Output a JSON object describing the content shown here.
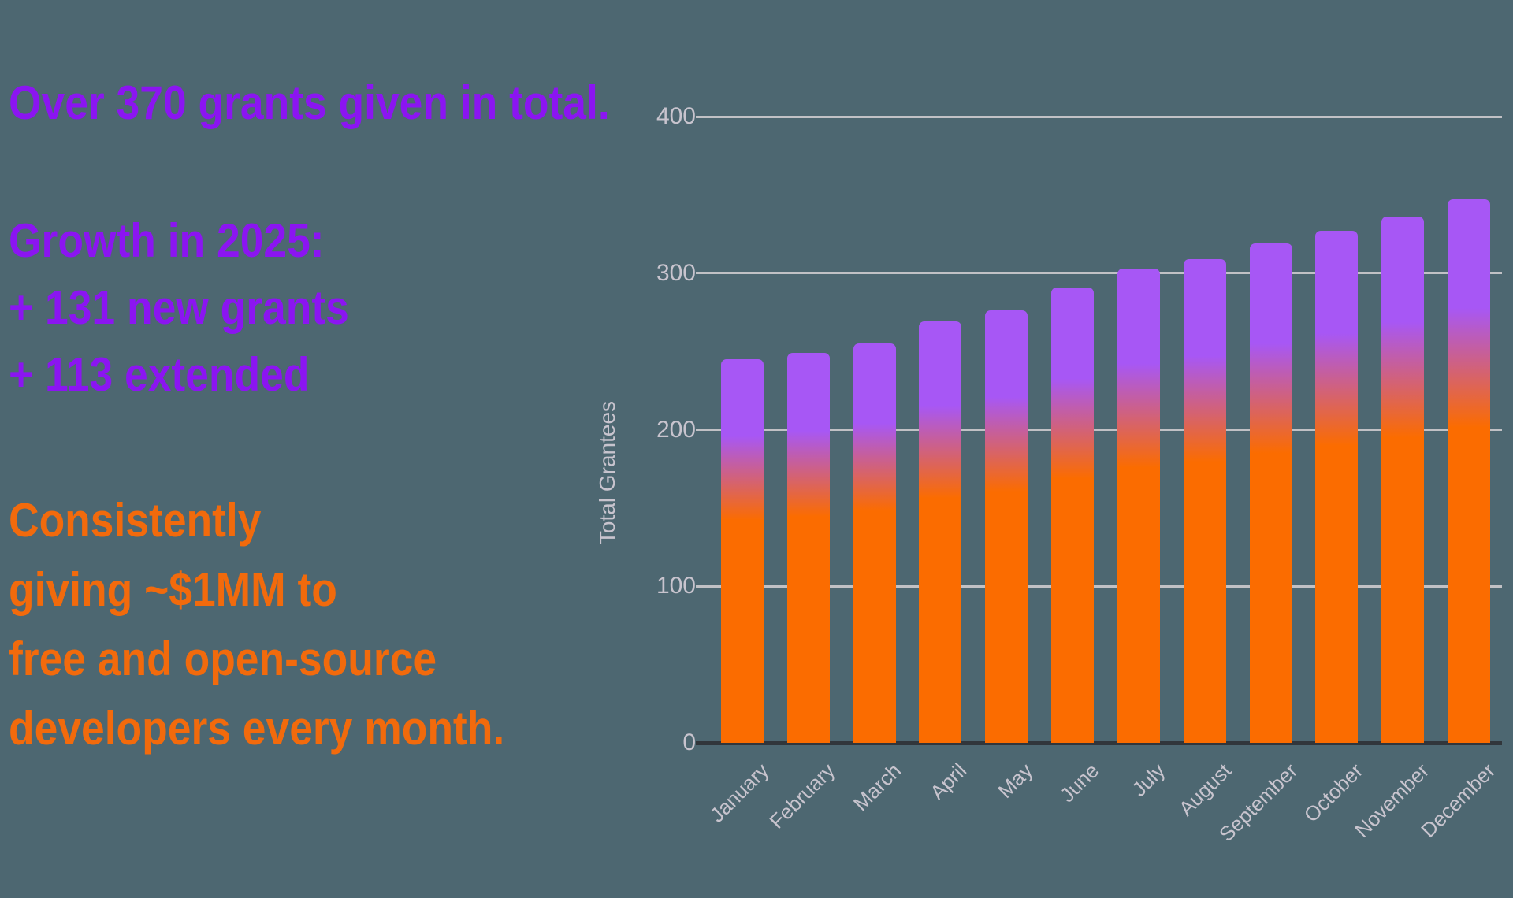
{
  "left_panel": {
    "headline": "Over 370 grants given in total.",
    "growth": {
      "heading": "Growth in 2025:",
      "items": [
        "+ 131 new grants",
        "+ 113 extended"
      ]
    },
    "impact_lines": [
      "Consistently",
      "giving ~$1MM to",
      "free and open-source",
      "developers every month."
    ]
  },
  "chart_data": {
    "type": "bar",
    "title": "",
    "categories": [
      "January",
      "February",
      "March",
      "April",
      "May",
      "June",
      "July",
      "August",
      "September",
      "October",
      "November",
      "December"
    ],
    "values": [
      245,
      249,
      255,
      269,
      276,
      291,
      303,
      309,
      319,
      327,
      336,
      347
    ],
    "xlabel": "",
    "ylabel": "Total Grantees",
    "ylim": [
      0,
      400
    ],
    "yticks": [
      0,
      100,
      200,
      300,
      400
    ],
    "grid": "horizontal-gridlines",
    "legend": "none",
    "x_tick_rotation_deg": -45,
    "bar_gradient": [
      "#A757F5",
      "#FB6C00"
    ]
  },
  "colors": {
    "background": "#4D6771",
    "headline_purple": "#8B15F1",
    "impact_orange": "#F26A0C",
    "bar_gradient_top": "#A757F5",
    "bar_gradient_bottom": "#FB6C00",
    "gridline": "#C1C1C5",
    "axis_baseline": "#31363B",
    "axis_text": "#C8C4CE"
  }
}
